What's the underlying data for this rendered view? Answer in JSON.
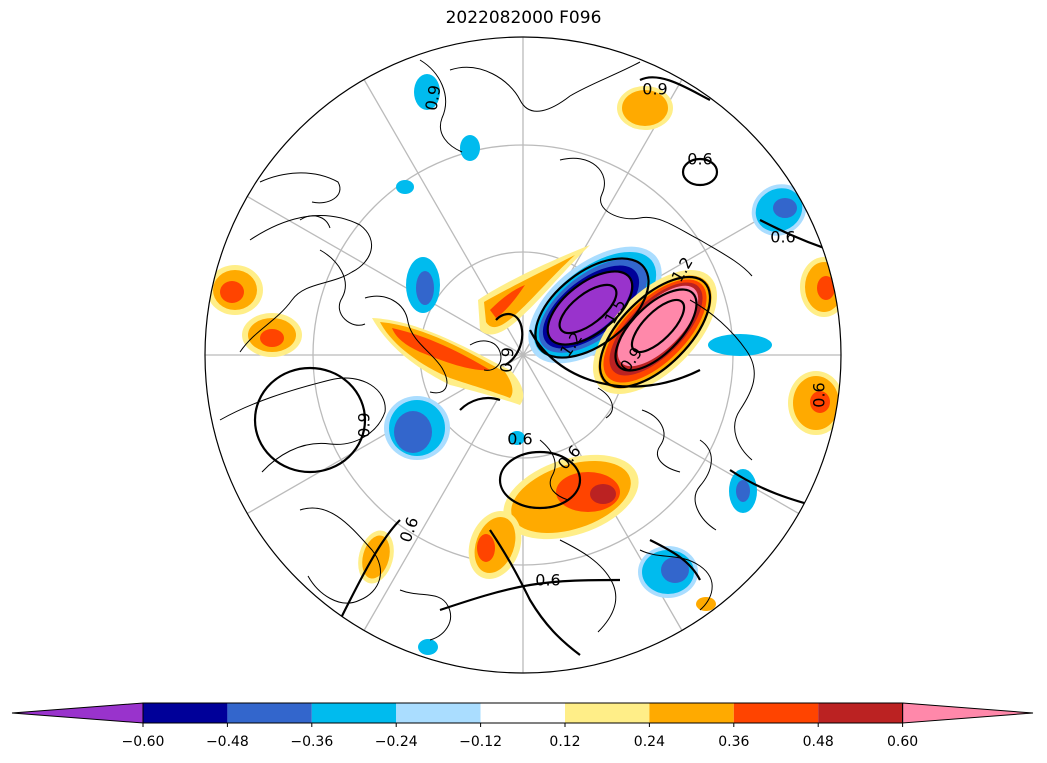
{
  "title": "2022082000 F096",
  "colorbar": {
    "colors": [
      "#9933cc",
      "#000099",
      "#3366cc",
      "#00bbee",
      "#aaddff",
      "#ffffff",
      "#ffee88",
      "#ffaa00",
      "#ff4400",
      "#bb2222",
      "#ff88aa"
    ],
    "ticks": [
      "−0.60",
      "−0.48",
      "−0.36",
      "−0.24",
      "−0.12",
      "0.12",
      "0.24",
      "0.36",
      "0.48",
      "0.60"
    ]
  },
  "contour_labels": [
    "0.9",
    "0.6",
    "0.6",
    "0.6",
    "1.2",
    "0.9",
    "1.2",
    "1.5",
    "0.6",
    "0.9",
    "0.6",
    "0.6",
    "0.6",
    "0.9",
    "0.9"
  ]
}
